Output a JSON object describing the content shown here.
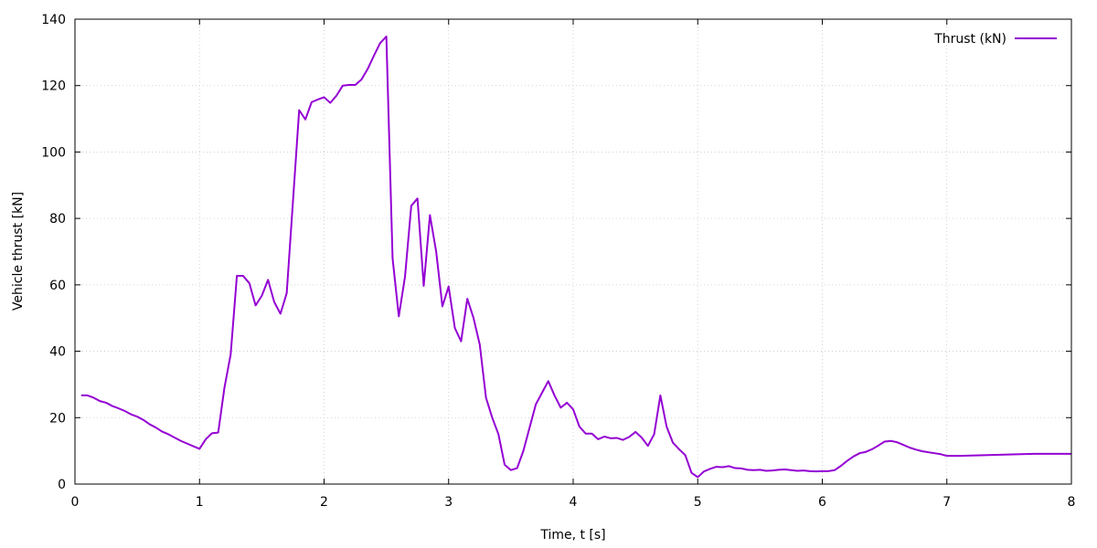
{
  "chart_data": {
    "type": "line",
    "title": "",
    "xlabel": "Time, t [s]",
    "ylabel": "Vehicle thrust [kN]",
    "xlim": [
      0,
      8
    ],
    "ylim": [
      0,
      140
    ],
    "xticks": [
      0,
      1,
      2,
      3,
      4,
      5,
      6,
      7,
      8
    ],
    "yticks": [
      0,
      20,
      40,
      60,
      80,
      100,
      120,
      140
    ],
    "grid": true,
    "legend_position": "top-right",
    "series": [
      {
        "name": "Thrust (kN)",
        "color": "#9400d3",
        "points": [
          [
            0.05,
            26.7
          ],
          [
            0.1,
            26.7
          ],
          [
            0.15,
            26.0
          ],
          [
            0.2,
            25.0
          ],
          [
            0.25,
            24.5
          ],
          [
            0.3,
            23.5
          ],
          [
            0.35,
            22.8
          ],
          [
            0.4,
            22.0
          ],
          [
            0.45,
            21.0
          ],
          [
            0.5,
            20.3
          ],
          [
            0.55,
            19.3
          ],
          [
            0.6,
            18.0
          ],
          [
            0.65,
            17.0
          ],
          [
            0.7,
            15.8
          ],
          [
            0.75,
            15.0
          ],
          [
            0.8,
            14.0
          ],
          [
            0.85,
            13.0
          ],
          [
            0.9,
            12.2
          ],
          [
            0.95,
            11.4
          ],
          [
            1.0,
            10.6
          ],
          [
            1.05,
            13.5
          ],
          [
            1.1,
            15.3
          ],
          [
            1.15,
            15.5
          ],
          [
            1.2,
            29.0
          ],
          [
            1.25,
            39.0
          ],
          [
            1.3,
            62.7
          ],
          [
            1.35,
            62.7
          ],
          [
            1.4,
            60.5
          ],
          [
            1.45,
            53.8
          ],
          [
            1.5,
            56.7
          ],
          [
            1.55,
            61.5
          ],
          [
            1.6,
            54.8
          ],
          [
            1.65,
            51.3
          ],
          [
            1.7,
            57.5
          ],
          [
            1.75,
            85.0
          ],
          [
            1.8,
            112.6
          ],
          [
            1.85,
            109.8
          ],
          [
            1.9,
            115.0
          ],
          [
            1.95,
            115.8
          ],
          [
            2.0,
            116.5
          ],
          [
            2.05,
            114.8
          ],
          [
            2.1,
            117.0
          ],
          [
            2.15,
            120.0
          ],
          [
            2.2,
            120.2
          ],
          [
            2.25,
            120.2
          ],
          [
            2.3,
            121.8
          ],
          [
            2.35,
            125.0
          ],
          [
            2.4,
            129.0
          ],
          [
            2.45,
            132.8
          ],
          [
            2.5,
            134.8
          ],
          [
            2.55,
            68.0
          ],
          [
            2.6,
            50.5
          ],
          [
            2.65,
            62.5
          ],
          [
            2.7,
            83.8
          ],
          [
            2.75,
            86.0
          ],
          [
            2.8,
            59.7
          ],
          [
            2.85,
            81.0
          ],
          [
            2.9,
            70.0
          ],
          [
            2.95,
            53.5
          ],
          [
            3.0,
            59.5
          ],
          [
            3.05,
            47.0
          ],
          [
            3.1,
            43.0
          ],
          [
            3.15,
            55.8
          ],
          [
            3.2,
            50.0
          ],
          [
            3.25,
            42.0
          ],
          [
            3.3,
            26.0
          ],
          [
            3.35,
            20.0
          ],
          [
            3.4,
            15.0
          ],
          [
            3.45,
            5.8
          ],
          [
            3.5,
            4.2
          ],
          [
            3.55,
            4.8
          ],
          [
            3.6,
            10.0
          ],
          [
            3.65,
            17.0
          ],
          [
            3.7,
            24.0
          ],
          [
            3.75,
            27.5
          ],
          [
            3.8,
            31.0
          ],
          [
            3.85,
            26.7
          ],
          [
            3.9,
            23.0
          ],
          [
            3.95,
            24.5
          ],
          [
            4.0,
            22.5
          ],
          [
            4.05,
            17.3
          ],
          [
            4.1,
            15.2
          ],
          [
            4.15,
            15.2
          ],
          [
            4.2,
            13.5
          ],
          [
            4.25,
            14.3
          ],
          [
            4.3,
            13.8
          ],
          [
            4.35,
            13.9
          ],
          [
            4.4,
            13.3
          ],
          [
            4.45,
            14.2
          ],
          [
            4.5,
            15.7
          ],
          [
            4.55,
            14.0
          ],
          [
            4.6,
            11.5
          ],
          [
            4.65,
            15.0
          ],
          [
            4.7,
            26.7
          ],
          [
            4.75,
            17.3
          ],
          [
            4.8,
            12.5
          ],
          [
            4.85,
            10.5
          ],
          [
            4.9,
            8.7
          ],
          [
            4.95,
            3.4
          ],
          [
            5.0,
            2.1
          ],
          [
            5.05,
            3.8
          ],
          [
            5.1,
            4.6
          ],
          [
            5.15,
            5.2
          ],
          [
            5.2,
            5.1
          ],
          [
            5.25,
            5.4
          ],
          [
            5.3,
            4.8
          ],
          [
            5.35,
            4.7
          ],
          [
            5.4,
            4.3
          ],
          [
            5.45,
            4.2
          ],
          [
            5.5,
            4.3
          ],
          [
            5.55,
            4.0
          ],
          [
            5.6,
            4.1
          ],
          [
            5.65,
            4.3
          ],
          [
            5.7,
            4.4
          ],
          [
            5.75,
            4.2
          ],
          [
            5.8,
            4.0
          ],
          [
            5.85,
            4.1
          ],
          [
            5.9,
            3.9
          ],
          [
            5.95,
            3.8
          ],
          [
            6.0,
            3.9
          ],
          [
            6.05,
            3.9
          ],
          [
            6.1,
            4.2
          ],
          [
            6.15,
            5.5
          ],
          [
            6.2,
            7.0
          ],
          [
            6.25,
            8.3
          ],
          [
            6.3,
            9.3
          ],
          [
            6.35,
            9.7
          ],
          [
            6.4,
            10.5
          ],
          [
            6.45,
            11.6
          ],
          [
            6.5,
            12.8
          ],
          [
            6.55,
            13.0
          ],
          [
            6.6,
            12.6
          ],
          [
            6.65,
            11.8
          ],
          [
            6.7,
            11.0
          ],
          [
            6.75,
            10.4
          ],
          [
            6.8,
            9.9
          ],
          [
            6.85,
            9.6
          ],
          [
            6.9,
            9.3
          ],
          [
            6.95,
            9.0
          ],
          [
            7.0,
            8.5
          ],
          [
            7.1,
            8.5
          ],
          [
            7.2,
            8.6
          ],
          [
            7.3,
            8.7
          ],
          [
            7.4,
            8.8
          ],
          [
            7.5,
            8.9
          ],
          [
            7.6,
            9.0
          ],
          [
            7.7,
            9.1
          ],
          [
            7.8,
            9.1
          ],
          [
            7.9,
            9.1
          ],
          [
            8.0,
            9.1
          ]
        ]
      }
    ]
  }
}
